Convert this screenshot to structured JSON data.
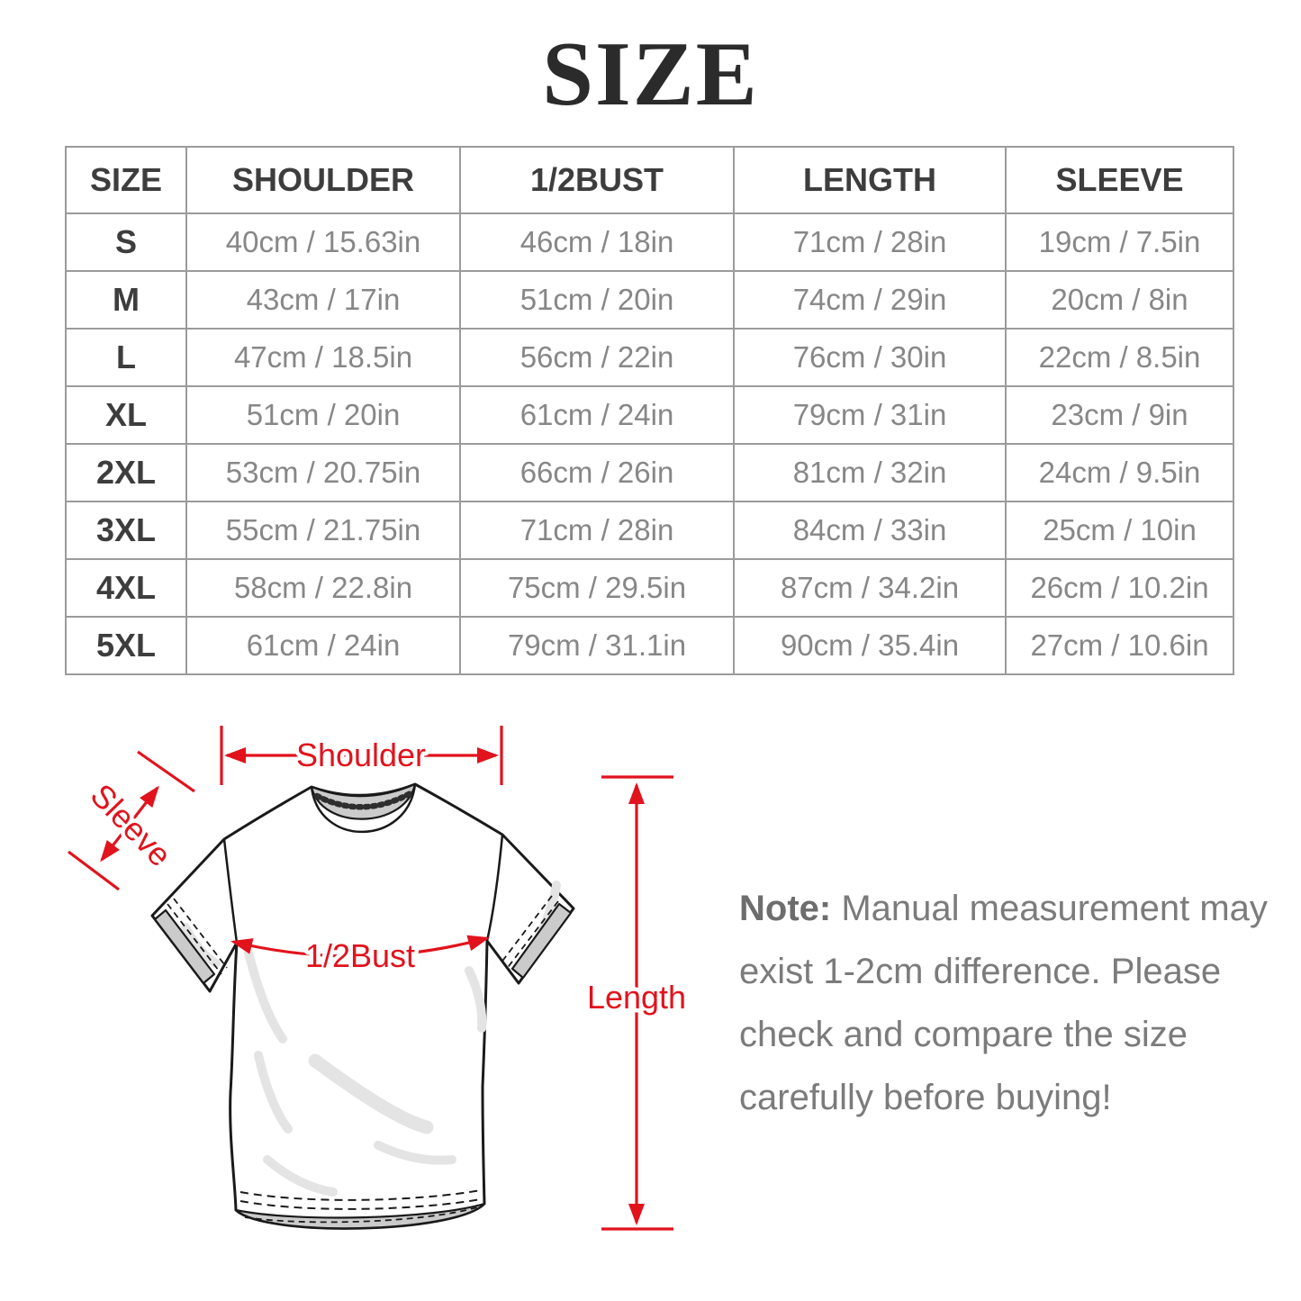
{
  "page": {
    "title": "SIZE"
  },
  "table": {
    "headers": [
      "SIZE",
      "SHOULDER",
      "1/2BUST",
      "LENGTH",
      "SLEEVE"
    ],
    "rows": [
      [
        "S",
        "40cm / 15.63in",
        "46cm / 18in",
        "71cm / 28in",
        "19cm / 7.5in"
      ],
      [
        "M",
        "43cm / 17in",
        "51cm / 20in",
        "74cm / 29in",
        "20cm / 8in"
      ],
      [
        "L",
        "47cm / 18.5in",
        "56cm / 22in",
        "76cm / 30in",
        "22cm / 8.5in"
      ],
      [
        "XL",
        "51cm / 20in",
        "61cm / 24in",
        "79cm / 31in",
        "23cm / 9in"
      ],
      [
        "2XL",
        "53cm / 20.75in",
        "66cm / 26in",
        "81cm / 32in",
        "24cm / 9.5in"
      ],
      [
        "3XL",
        "55cm / 21.75in",
        "71cm / 28in",
        "84cm / 33in",
        "25cm / 10in"
      ],
      [
        "4XL",
        "58cm / 22.8in",
        "75cm / 29.5in",
        "87cm / 34.2in",
        "26cm / 10.2in"
      ],
      [
        "5XL",
        "61cm / 24in",
        "79cm / 31.1in",
        "90cm / 35.4in",
        "27cm / 10.6in"
      ]
    ]
  },
  "diagram": {
    "labels": {
      "shoulder": "Shoulder",
      "sleeve": "Sleeve",
      "half_bust": "1/2Bust",
      "length": "Length"
    }
  },
  "note": {
    "label": "Note:",
    "lines": [
      "Manual measurement may",
      "exist 1-2cm difference. Please",
      "check and compare the size",
      "carefully before buying!"
    ]
  },
  "colors": {
    "annotation_red": "#e1131d",
    "table_border": "#9b9b9b",
    "header_text": "#3d3d3d",
    "cell_text": "#878787",
    "note_text": "#7b7b7b",
    "title_text": "#2b2b2b"
  }
}
